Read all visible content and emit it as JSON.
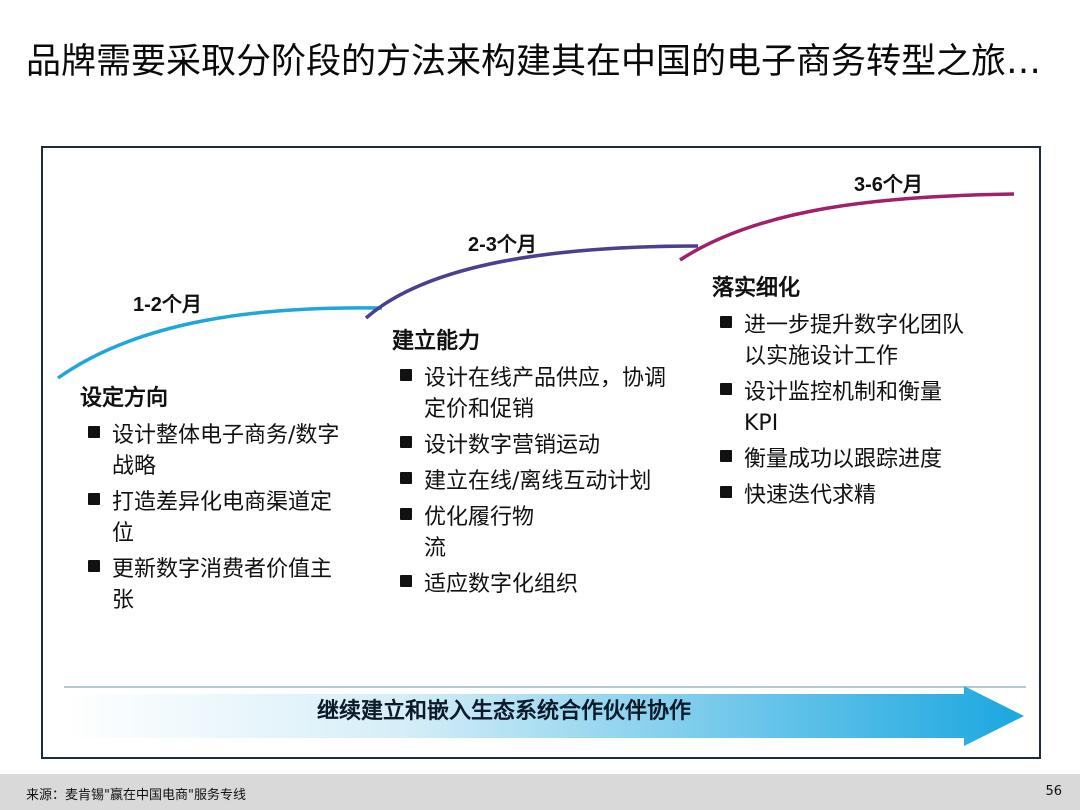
{
  "title": "品牌需要采取分阶段的方法来构建其在中国的电子商务转型之旅…",
  "durations": [
    "1-2个月",
    "2-3个月",
    "3-6个月"
  ],
  "phases": [
    {
      "title": "设定方向",
      "items": [
        "设计整体电子商务/数字战略",
        "打造差异化电商渠道定位",
        "更新数字消费者价值主张"
      ]
    },
    {
      "title": "建立能力",
      "items": [
        "设计在线产品供应，协调定价和促销",
        "设计数字营销运动",
        "建立在线/离线互动计划",
        "优化履行物流",
        "适应数字化组织"
      ]
    },
    {
      "title": "落实细化",
      "items": [
        "进一步提升数字化团队以实施设计工作",
        "设计监控机制和衡量KPI",
        "衡量成功以跟踪进度",
        "快速迭代求精"
      ]
    }
  ],
  "arrow_label": "继续建立和嵌入生态系统合作伙伴协作",
  "footer": {
    "source": "来源：麦肯锡\"赢在中国电商\"服务专线",
    "page": "56"
  },
  "colors": {
    "curve1": "#1ea7d8",
    "curve2": "#4b3f8f",
    "curve3": "#a0206a",
    "arrow_start": "#ffffff",
    "arrow_end": "#1aa7e0"
  }
}
